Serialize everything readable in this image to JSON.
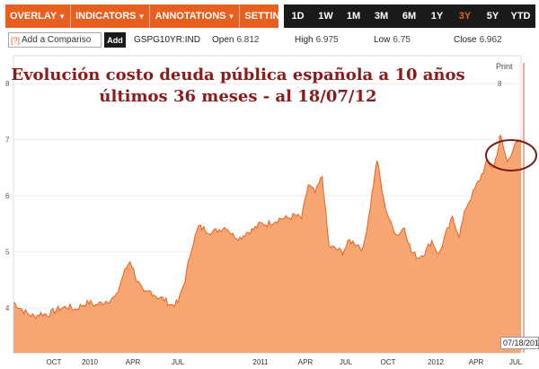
{
  "toolbar": {
    "menus": [
      {
        "label": "OVERLAY",
        "caret": "▼"
      },
      {
        "label": "INDICATORS",
        "caret": "▼"
      },
      {
        "label": "ANNOTATIONS",
        "caret": "▼"
      },
      {
        "label": "SETTINGS",
        "caret": "▼"
      }
    ],
    "ranges": [
      "1D",
      "1W",
      "1M",
      "3M",
      "6M",
      "1Y",
      "3Y",
      "5Y",
      "YTD"
    ],
    "active_range": "3Y",
    "colors": {
      "menu_bg": "#e8601f",
      "range_bg": "#1a1a1a",
      "active": "#e8601f"
    }
  },
  "compare": {
    "help": "[?]",
    "placeholder": "Add a Compariso",
    "add_label": "Add"
  },
  "quote": {
    "ticker": "GSPG10YR:IND",
    "open_label": "Open",
    "open": "6.812",
    "high_label": "High",
    "high": "6.975",
    "low_label": "Low",
    "low": "6.75",
    "close_label": "Close",
    "close": "6.962"
  },
  "chart": {
    "title_line1": "Evolución costo deuda pública española a 10 años",
    "title_line2": "últimos 36 meses - al 18/07/12",
    "print_label": "Print",
    "date_label": "07/18/201",
    "y_ticks": [
      4,
      5,
      6,
      7,
      8
    ],
    "x_ticks": [
      "OCT",
      "2010",
      "APR",
      "JUL",
      "2011",
      "APR",
      "JUL",
      "OCT",
      "2012",
      "APR",
      "JUL"
    ]
  },
  "chart_data": {
    "type": "area",
    "ylim": [
      3.2,
      8.5
    ],
    "x_ticks": [
      "OCT",
      "2010",
      "APR",
      "JUL",
      "2011",
      "APR",
      "JUL",
      "OCT",
      "2012",
      "APR",
      "JUL"
    ],
    "series": [
      {
        "values": [
          4.1,
          4.0,
          3.9,
          3.85,
          3.9,
          3.88,
          3.95,
          4.0,
          4.02,
          3.98,
          4.05,
          4.1,
          4.05,
          4.1,
          4.15,
          4.2,
          4.6,
          4.85,
          4.5,
          4.25,
          4.3,
          4.2,
          4.15,
          4.05,
          4.1,
          4.5,
          5.1,
          5.45,
          5.4,
          5.35,
          5.4,
          5.45,
          5.3,
          5.25,
          5.35,
          5.4,
          5.5,
          5.5,
          5.55,
          5.6,
          5.6,
          5.65,
          5.6,
          6.2,
          6.05,
          6.35,
          5.1,
          5.05,
          5.0,
          5.2,
          5.15,
          5.05,
          5.8,
          6.65,
          5.9,
          5.5,
          5.3,
          5.45,
          5.0,
          4.9,
          5.0,
          5.2,
          4.95,
          5.3,
          5.6,
          5.3,
          5.8,
          6.05,
          6.3,
          6.6,
          6.5,
          7.05,
          6.6,
          6.9,
          6.96
        ]
      }
    ],
    "highlight": "circle around latest values near 7"
  }
}
